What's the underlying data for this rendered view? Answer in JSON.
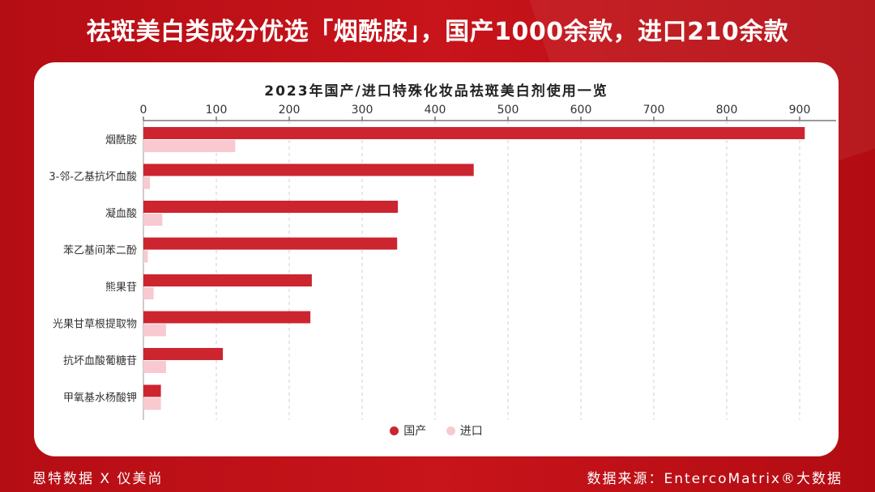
{
  "headline": "祛斑美白类成分优选「烟酰胺」，国产1000余款，进口210余款",
  "footer": {
    "left": "恩特数据 X 仪美尚",
    "right": "数据来源：EntercoMatrix®大数据"
  },
  "colors": {
    "domestic": "#cc2530",
    "imported": "#f8c9d0"
  },
  "chart_data": {
    "type": "bar",
    "orientation": "horizontal",
    "title": "2023年国产/进口特殊化妆品祛斑美白剂使用一览",
    "categories": [
      "烟酰胺",
      "3-邻-乙基抗坏血酸",
      "凝血酸",
      "苯乙基间苯二酚",
      "熊果苷",
      "光果甘草根提取物",
      "抗坏血酸葡糖苷",
      "甲氧基水杨酸钾"
    ],
    "series": [
      {
        "name": "国产",
        "values": [
          907,
          453,
          349,
          348,
          231,
          229,
          109,
          24
        ]
      },
      {
        "name": "进口",
        "values": [
          126,
          9,
          26,
          6,
          14,
          31,
          31,
          24
        ]
      }
    ],
    "xlim": [
      0,
      950
    ],
    "xticks": [
      0,
      100,
      200,
      300,
      400,
      500,
      600,
      700,
      800,
      900
    ],
    "grid": true,
    "legend": "bottom"
  }
}
